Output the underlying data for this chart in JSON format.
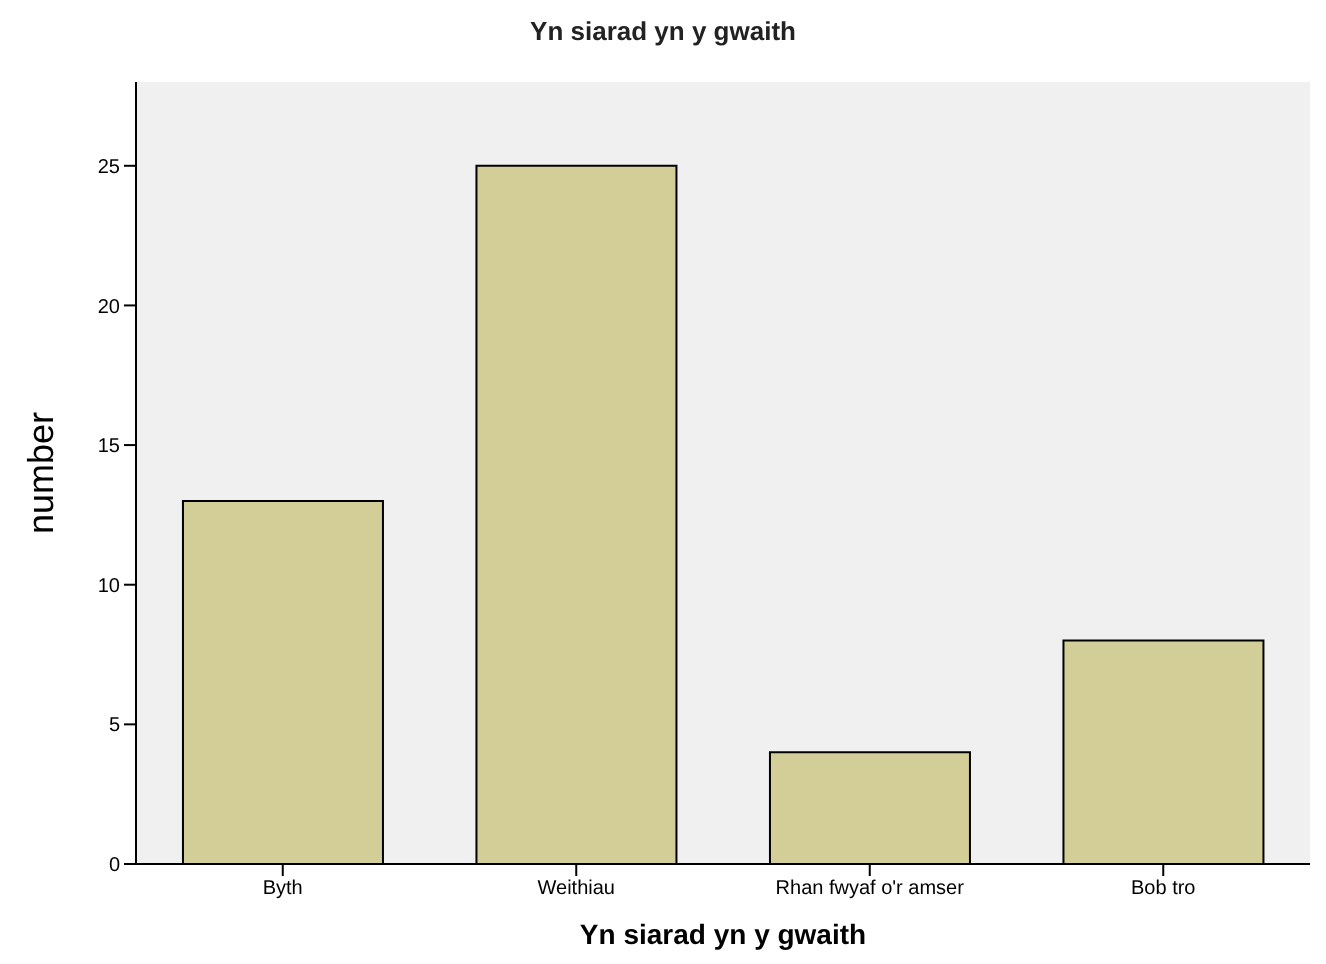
{
  "chart_data": {
    "type": "bar",
    "title": "Yn siarad yn y gwaith",
    "xlabel": "Yn siarad yn y gwaith",
    "ylabel": "number",
    "categories": [
      "Byth",
      "Weithiau",
      "Rhan fwyaf o'r amser",
      "Bob tro"
    ],
    "values": [
      13,
      25,
      4,
      8
    ],
    "color": "#d3ce97",
    "ylim": [
      0,
      28
    ],
    "yticks": [
      0,
      5,
      10,
      15,
      20,
      25
    ]
  }
}
